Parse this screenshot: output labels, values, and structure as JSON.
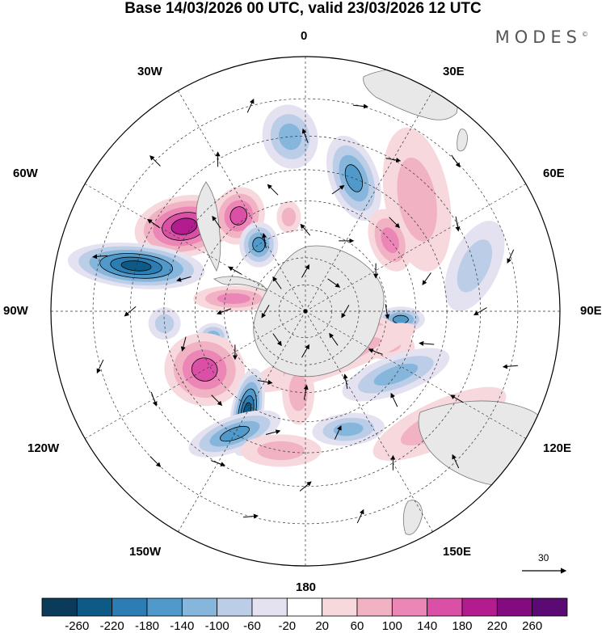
{
  "title": "Base 14/03/2026 00 UTC, valid 23/03/2026 12 UTC",
  "logo": "MODES",
  "logo_mark": "©",
  "longitude_labels": {
    "lon_0": "0",
    "lon_30e": "30E",
    "lon_60e": "60E",
    "lon_90e": "90E",
    "lon_120e": "120E",
    "lon_150e": "150E",
    "lon_180": "180",
    "lon_150w": "150W",
    "lon_120w": "120W",
    "lon_90w": "90W",
    "lon_60w": "60W",
    "lon_30w": "30W"
  },
  "wind_scale_label": "30",
  "colorbar": {
    "levels": [
      "-260",
      "-220",
      "-180",
      "-140",
      "-100",
      "-60",
      "-20",
      "20",
      "60",
      "100",
      "140",
      "180",
      "220",
      "260"
    ],
    "colors": [
      "#0b3b5a",
      "#0e5a87",
      "#2b7db3",
      "#4f9acb",
      "#86b6dc",
      "#bccde8",
      "#e4e2f0",
      "#ffffff",
      "#f7d8dc",
      "#f1b2c4",
      "#ec86b6",
      "#d950a6",
      "#b21c8f",
      "#830a7f",
      "#5a0a72"
    ]
  },
  "map": {
    "ocean_color": "#ffffff",
    "land_color": "#e8e8e8",
    "anomalies": [
      {
        "lon": -55,
        "lat": -38,
        "rx": 62,
        "ry": 38,
        "rot": -10,
        "value": 200
      },
      {
        "lon": -35,
        "lat": -48,
        "rx": 32,
        "ry": 36,
        "rot": 20,
        "value": 150
      },
      {
        "lon": -75,
        "lat": -30,
        "rx": 85,
        "ry": 28,
        "rot": 5,
        "value": -250
      },
      {
        "lon": -35,
        "lat": -60,
        "rx": 24,
        "ry": 28,
        "rot": 0,
        "value": -140
      },
      {
        "lon": -5,
        "lat": -30,
        "rx": 34,
        "ry": 40,
        "rot": -15,
        "value": -120
      },
      {
        "lon": 20,
        "lat": -40,
        "rx": 30,
        "ry": 55,
        "rot": -20,
        "value": -170
      },
      {
        "lon": 45,
        "lat": -35,
        "rx": 40,
        "ry": 90,
        "rot": -10,
        "value": 70
      },
      {
        "lon": 50,
        "lat": -50,
        "rx": 25,
        "ry": 40,
        "rot": -20,
        "value": 110
      },
      {
        "lon": 75,
        "lat": -30,
        "rx": 30,
        "ry": 60,
        "rot": 25,
        "value": -70
      },
      {
        "lon": 95,
        "lat": -55,
        "rx": 30,
        "ry": 16,
        "rot": 0,
        "value": -150
      },
      {
        "lon": 110,
        "lat": -65,
        "rx": 60,
        "ry": 26,
        "rot": 20,
        "value": 110
      },
      {
        "lon": 125,
        "lat": -50,
        "rx": 70,
        "ry": 24,
        "rot": -20,
        "value": -120
      },
      {
        "lon": 130,
        "lat": -30,
        "rx": 90,
        "ry": 28,
        "rot": -25,
        "value": 70
      },
      {
        "lon": 150,
        "lat": -70,
        "rx": 110,
        "ry": 22,
        "rot": -20,
        "value": 60
      },
      {
        "lon": 160,
        "lat": -45,
        "rx": 45,
        "ry": 20,
        "rot": -5,
        "value": -100
      },
      {
        "lon": -105,
        "lat": -55,
        "rx": 20,
        "ry": 16,
        "rot": 0,
        "value": -120
      },
      {
        "lon": -80,
        "lat": -63,
        "rx": 50,
        "ry": 16,
        "rot": 0,
        "value": 110
      },
      {
        "lon": -120,
        "lat": -48,
        "rx": 50,
        "ry": 45,
        "rot": 10,
        "value": 170
      },
      {
        "lon": -150,
        "lat": -48,
        "rx": 20,
        "ry": 55,
        "rot": 10,
        "value": -230
      },
      {
        "lon": -150,
        "lat": -40,
        "rx": 60,
        "ry": 22,
        "rot": -20,
        "value": -140
      },
      {
        "lon": -170,
        "lat": -40,
        "rx": 50,
        "ry": 20,
        "rot": 0,
        "value": 60
      },
      {
        "lon": -175,
        "lat": -60,
        "rx": 20,
        "ry": 40,
        "rot": 0,
        "value": 60
      },
      {
        "lon": -95,
        "lat": -40,
        "rx": 20,
        "ry": 20,
        "rot": 0,
        "value": -60
      },
      {
        "lon": -10,
        "lat": -55,
        "rx": 15,
        "ry": 20,
        "rot": 0,
        "value": 60
      },
      {
        "lon": 80,
        "lat": -70,
        "rx": 25,
        "ry": 25,
        "rot": 0,
        "value": 60
      }
    ],
    "wind_arrows": [
      {
        "lon": -60,
        "lat": -60,
        "dir": 0
      },
      {
        "lon": -30,
        "lat": -60,
        "dir": 20
      },
      {
        "lon": 0,
        "lat": -60,
        "dir": -40
      },
      {
        "lon": 30,
        "lat": -60,
        "dir": 60
      },
      {
        "lon": 60,
        "lat": -60,
        "dir": 120
      },
      {
        "lon": 90,
        "lat": -60,
        "dir": 80
      },
      {
        "lon": 120,
        "lat": -60,
        "dir": 170
      },
      {
        "lon": 150,
        "lat": -60,
        "dir": 200
      },
      {
        "lon": 180,
        "lat": -60,
        "dir": 190
      },
      {
        "lon": -150,
        "lat": -60,
        "dir": 250
      },
      {
        "lon": -120,
        "lat": -60,
        "dir": 300
      },
      {
        "lon": -90,
        "lat": -60,
        "dir": 340
      },
      {
        "lon": -45,
        "lat": -45,
        "dir": 10
      },
      {
        "lon": -15,
        "lat": -45,
        "dir": -30
      },
      {
        "lon": 15,
        "lat": -45,
        "dir": 40
      },
      {
        "lon": 45,
        "lat": -45,
        "dir": 90
      },
      {
        "lon": 75,
        "lat": -45,
        "dir": 140
      },
      {
        "lon": 105,
        "lat": -45,
        "dir": 170
      },
      {
        "lon": 135,
        "lat": -45,
        "dir": 200
      },
      {
        "lon": 165,
        "lat": -45,
        "dir": 220
      },
      {
        "lon": -165,
        "lat": -45,
        "dir": 240
      },
      {
        "lon": -135,
        "lat": -45,
        "dir": 270
      },
      {
        "lon": -105,
        "lat": -45,
        "dir": 300
      },
      {
        "lon": -75,
        "lat": -45,
        "dir": 330
      },
      {
        "lon": -60,
        "lat": -30,
        "dir": 5
      },
      {
        "lon": -30,
        "lat": -30,
        "dir": 30
      },
      {
        "lon": 0,
        "lat": -30,
        "dir": -20
      },
      {
        "lon": 30,
        "lat": -30,
        "dir": 70
      },
      {
        "lon": 60,
        "lat": -30,
        "dir": 110
      },
      {
        "lon": 90,
        "lat": -30,
        "dir": 150
      },
      {
        "lon": 120,
        "lat": -30,
        "dir": 180
      },
      {
        "lon": 150,
        "lat": -30,
        "dir": 210
      },
      {
        "lon": 180,
        "lat": -30,
        "dir": 230
      },
      {
        "lon": -150,
        "lat": -30,
        "dir": 260
      },
      {
        "lon": -120,
        "lat": -30,
        "dir": 280
      },
      {
        "lon": -90,
        "lat": -30,
        "dir": 320
      },
      {
        "lon": -45,
        "lat": -20,
        "dir": 0
      },
      {
        "lon": -15,
        "lat": -20,
        "dir": 40
      },
      {
        "lon": 15,
        "lat": -20,
        "dir": 80
      },
      {
        "lon": 45,
        "lat": -20,
        "dir": 100
      },
      {
        "lon": 75,
        "lat": -20,
        "dir": 130
      },
      {
        "lon": 105,
        "lat": -20,
        "dir": 160
      },
      {
        "lon": 135,
        "lat": -20,
        "dir": 200
      },
      {
        "lon": 165,
        "lat": -20,
        "dir": 220
      },
      {
        "lon": -165,
        "lat": -20,
        "dir": 250
      },
      {
        "lon": -135,
        "lat": -20,
        "dir": 270
      },
      {
        "lon": -105,
        "lat": -20,
        "dir": 310
      },
      {
        "lon": -75,
        "lat": -20,
        "dir": 340
      },
      {
        "lon": -45,
        "lat": -75,
        "dir": 10
      },
      {
        "lon": 45,
        "lat": -75,
        "dir": 80
      },
      {
        "lon": 135,
        "lat": -75,
        "dir": 190
      },
      {
        "lon": -135,
        "lat": -75,
        "dir": 280
      },
      {
        "lon": 0,
        "lat": -75,
        "dir": 30
      },
      {
        "lon": 90,
        "lat": -75,
        "dir": 120
      },
      {
        "lon": 180,
        "lat": -75,
        "dir": 210
      },
      {
        "lon": -90,
        "lat": -75,
        "dir": 300
      }
    ]
  }
}
